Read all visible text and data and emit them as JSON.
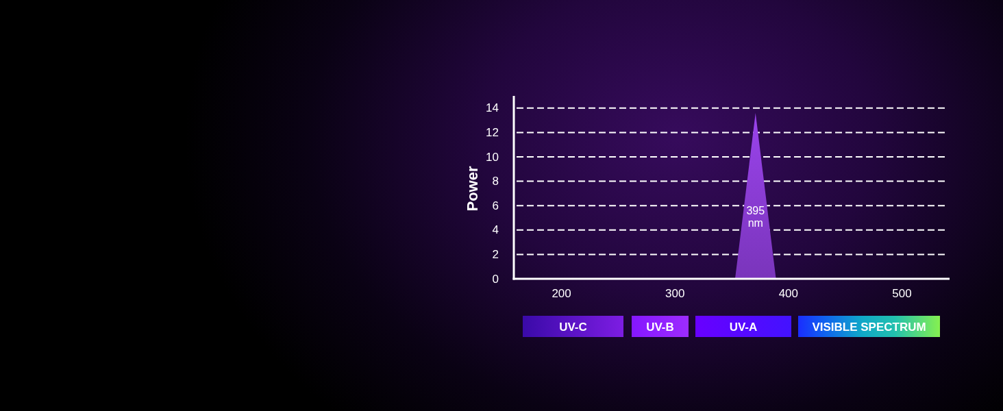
{
  "chart_data": {
    "type": "area",
    "ylabel": "Power",
    "xlim": [
      158,
      542
    ],
    "xticks": [
      200,
      300,
      400,
      500
    ],
    "ylim": [
      0,
      15
    ],
    "yticks": [
      0,
      2,
      4,
      6,
      8,
      10,
      12,
      14
    ],
    "grid": "y",
    "series": [
      {
        "x": [
          353,
          371,
          389
        ],
        "values": [
          0,
          13.6,
          0
        ],
        "color": "#8a3cd4"
      }
    ],
    "annotations": [
      "395 nm",
      "UV-C",
      "UV-B",
      "UV-A",
      "VISIBLE SPECTRUM"
    ]
  }
}
